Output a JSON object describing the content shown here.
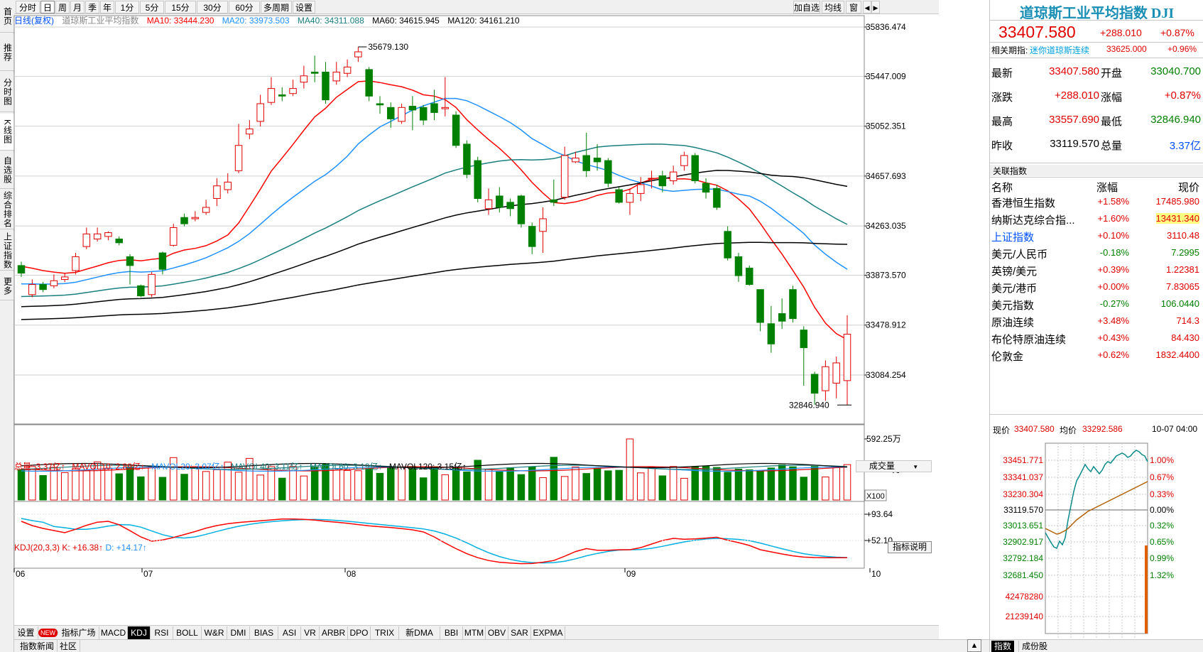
{
  "left_rail": [
    {
      "label": "首页"
    },
    {
      "label": "推荐"
    },
    {
      "label": "分时图"
    },
    {
      "label": "K线图"
    },
    {
      "label": "自选股"
    },
    {
      "label": "综合排名"
    },
    {
      "label": "上证指数"
    },
    {
      "label": "更多"
    }
  ],
  "toolbar": {
    "periods": [
      "分时",
      "日",
      "周",
      "月",
      "季",
      "年",
      "1分",
      "5分",
      "15分",
      "30分",
      "60分",
      "多周期",
      "设置"
    ],
    "active_period": "日",
    "right_buttons": [
      "加自选",
      "均线",
      "窗"
    ]
  },
  "ma_legend": {
    "title": "日线(复权)",
    "name": "道琼斯工业平均指数",
    "ma10": "MA10: 33444.230",
    "ma20": "MA20: 33973.503",
    "ma40": "MA40: 34311.088",
    "ma60": "MA60: 34615.945",
    "ma120": "MA120: 34161.210"
  },
  "colors": {
    "up": "#e00000",
    "down": "#008000",
    "ma10": "#ff0000",
    "ma20": "#1e90ff",
    "ma40": "#1a7f7f",
    "ma60": "#000000",
    "ma120": "#000000"
  },
  "price_axis": [
    "35836.474",
    "35447.009",
    "35052.351",
    "34657.693",
    "34263.035",
    "33873.570",
    "33478.912",
    "33084.254"
  ],
  "annotations": {
    "high": "35679.130",
    "low": "32846.940"
  },
  "volume_panel": {
    "legend": {
      "total": "总量: 3.37亿↑",
      "mavol10": "MAVOL10: 2.89亿↑",
      "mavol20": "MAVOL20: 3.07亿↑",
      "mavol40": "MAVOL40: 3.11亿↑",
      "mavol60": "MAVOL60: 3.19亿↑",
      "mavol120": "MAVOL120: 3.15亿↑"
    },
    "select": "成交量",
    "axis": [
      "592.25万",
      "296.12万"
    ],
    "unit": "X100"
  },
  "kdj_panel": {
    "legend": {
      "name": "KDJ(20,3,3)",
      "k": "K: +16.38↑",
      "d": "D: +14.17↑"
    },
    "button": "指标说明",
    "axis": [
      "+93.64",
      "+52.10"
    ]
  },
  "date_axis": [
    "06",
    "07",
    "08",
    "09",
    "10"
  ],
  "indicator_tabs": [
    "设置",
    "NEW",
    "指标广场",
    "MACD",
    "KDJ",
    "RSI",
    "BOLL",
    "W&R",
    "DMI",
    "BIAS",
    "ASI",
    "VR",
    "ARBR",
    "DPO",
    "TRIX",
    "新DMA",
    "BBI",
    "MTM",
    "OBV",
    "SAR",
    "EXPMA"
  ],
  "active_indicator": "KDJ",
  "status_tabs": [
    "指数新闻",
    "社区"
  ],
  "right_panel": {
    "title": "道琼斯工业平均指数 DJI",
    "price": "33407.580",
    "change": "+288.010",
    "change_pct": "+0.87%",
    "related_label": "相关期指:",
    "related_name": "迷你道琼斯连续",
    "related_price": "33625.000",
    "related_pct": "+0.96%",
    "quote": [
      {
        "l1": "最新",
        "v1": "33407.580",
        "l2": "开盘",
        "v2": "33040.700"
      },
      {
        "l1": "涨跌",
        "v1": "+288.010",
        "l2": "涨幅",
        "v2": "+0.87%"
      },
      {
        "l1": "最高",
        "v1": "33557.690",
        "l2": "最低",
        "v2": "32846.940"
      },
      {
        "l1": "昨收",
        "v1": "33119.570",
        "l2": "总量",
        "v2": "3.37亿"
      }
    ],
    "related_index_title": "关联指数",
    "related_headers": [
      "名称",
      "涨幅",
      "现价"
    ],
    "related_rows": [
      {
        "name": "香港恒生指数",
        "pct": "+1.58%",
        "price": "17485.980"
      },
      {
        "name": "纳斯达克综合指...",
        "pct": "+1.60%",
        "price": "13431.340"
      },
      {
        "name": "上证指数",
        "pct": "+0.10%",
        "price": "3110.48"
      },
      {
        "name": "美元/人民币",
        "pct": "-0.18%",
        "price": "7.2995"
      },
      {
        "name": "英镑/美元",
        "pct": "+0.39%",
        "price": "1.22381"
      },
      {
        "name": "美元/港币",
        "pct": "+0.00%",
        "price": "7.83065"
      },
      {
        "name": "美元指数",
        "pct": "-0.27%",
        "price": "106.0440"
      },
      {
        "name": "原油连续",
        "pct": "+3.48%",
        "price": "714.3"
      },
      {
        "name": "布伦特原油连续",
        "pct": "+0.43%",
        "price": "84.430"
      },
      {
        "name": "伦敦金",
        "pct": "+0.62%",
        "price": "1832.4400"
      }
    ],
    "mini": {
      "price_label": "现价",
      "price": "33407.580",
      "avg_label": "均价",
      "avg": "33292.586",
      "time": "10-07 04:00",
      "left_axis": [
        "33451.771",
        "33341.037",
        "33230.304",
        "33119.570",
        "33013.651",
        "32902.917",
        "32792.184",
        "32681.450",
        "42478280",
        "21239140"
      ],
      "right_axis": [
        "1.00%",
        "0.67%",
        "0.33%",
        "0.00%",
        "0.32%",
        "0.65%",
        "0.99%",
        "1.32%"
      ]
    },
    "bottom_tabs": [
      "指数",
      "成份股"
    ]
  },
  "chart_data": {
    "type": "candlestick",
    "note_ohlc": "approximate daily OHLC read from price axis",
    "candles": [
      [
        33950,
        33890,
        33980,
        33860
      ],
      [
        33720,
        33800,
        33840,
        33700
      ],
      [
        33800,
        33760,
        33820,
        33740
      ],
      [
        33790,
        33830,
        33880,
        33770
      ],
      [
        33840,
        33860,
        33890,
        33820
      ],
      [
        33910,
        34020,
        34050,
        33880
      ],
      [
        34100,
        34200,
        34250,
        34080
      ],
      [
        34160,
        34200,
        34250,
        34140
      ],
      [
        34180,
        34210,
        34220,
        34150
      ],
      [
        34160,
        34130,
        34180,
        34110
      ],
      [
        34020,
        33950,
        34040,
        33800
      ],
      [
        33790,
        33710,
        33800,
        33700
      ],
      [
        33720,
        33880,
        33900,
        33700
      ],
      [
        34050,
        33920,
        34060,
        33880
      ],
      [
        34110,
        34250,
        34280,
        34100
      ],
      [
        34330,
        34280,
        34360,
        34260
      ],
      [
        34320,
        34330,
        34380,
        34300
      ],
      [
        34370,
        34410,
        34470,
        34350
      ],
      [
        34480,
        34580,
        34640,
        34420
      ],
      [
        34550,
        34610,
        34680,
        34520
      ],
      [
        34700,
        34900,
        35070,
        34680
      ],
      [
        34990,
        35030,
        35100,
        34950
      ],
      [
        35090,
        35230,
        35300,
        35050
      ],
      [
        35240,
        35350,
        35440,
        35220
      ],
      [
        35300,
        35290,
        35360,
        35250
      ],
      [
        35310,
        35350,
        35420,
        35290
      ],
      [
        35400,
        35450,
        35530,
        35350
      ],
      [
        35480,
        35470,
        35610,
        35400
      ],
      [
        35480,
        35260,
        35560,
        35230
      ],
      [
        35410,
        35480,
        35560,
        35380
      ],
      [
        35470,
        35520,
        35580,
        35440
      ],
      [
        35600,
        35640,
        35680,
        35560
      ],
      [
        35500,
        35290,
        35520,
        35250
      ],
      [
        35230,
        35220,
        35290,
        35150
      ],
      [
        35200,
        35110,
        35240,
        35040
      ],
      [
        35090,
        35200,
        35230,
        35070
      ],
      [
        35210,
        35180,
        35290,
        35020
      ],
      [
        35200,
        35100,
        35220,
        35060
      ],
      [
        35230,
        35160,
        35340,
        35100
      ],
      [
        35190,
        35200,
        35440,
        35130
      ],
      [
        35140,
        34900,
        35170,
        34880
      ],
      [
        34910,
        34670,
        34940,
        34640
      ],
      [
        34780,
        34480,
        34810,
        34450
      ],
      [
        34400,
        34470,
        34560,
        34350
      ],
      [
        34500,
        34410,
        34570,
        34370
      ],
      [
        34450,
        34400,
        34480,
        34340
      ],
      [
        34500,
        34280,
        34510,
        34250
      ],
      [
        34260,
        34100,
        34290,
        34040
      ],
      [
        34220,
        34320,
        34410,
        34050
      ],
      [
        34470,
        34450,
        34630,
        34420
      ],
      [
        34490,
        34820,
        34890,
        34470
      ],
      [
        34770,
        34800,
        34850,
        34760
      ],
      [
        34820,
        34700,
        35000,
        34650
      ],
      [
        34800,
        34770,
        34910,
        34700
      ],
      [
        34780,
        34600,
        34800,
        34570
      ],
      [
        34550,
        34450,
        34570,
        34440
      ],
      [
        34450,
        34520,
        34560,
        34350
      ],
      [
        34520,
        34590,
        34650,
        34460
      ],
      [
        34640,
        34640,
        34700,
        34560
      ],
      [
        34660,
        34580,
        34700,
        34530
      ],
      [
        34620,
        34690,
        34740,
        34590
      ],
      [
        34740,
        34820,
        34850,
        34700
      ],
      [
        34820,
        34620,
        34840,
        34600
      ],
      [
        34600,
        34530,
        34640,
        34480
      ],
      [
        34560,
        34410,
        34590,
        34390
      ],
      [
        34220,
        34010,
        34260,
        33990
      ],
      [
        34020,
        33870,
        34050,
        33820
      ],
      [
        33930,
        33800,
        33950,
        33790
      ],
      [
        33760,
        33500,
        33760,
        33430
      ],
      [
        33490,
        33330,
        33630,
        33260
      ],
      [
        33570,
        33510,
        33690,
        33450
      ],
      [
        33760,
        33530,
        33790,
        33500
      ],
      [
        33440,
        33300,
        33470,
        33000
      ],
      [
        33090,
        32940,
        33110,
        32850
      ],
      [
        32960,
        33150,
        33200,
        32880
      ],
      [
        33020,
        33180,
        33230,
        32900
      ],
      [
        33040,
        33407,
        33557,
        32847
      ]
    ]
  }
}
